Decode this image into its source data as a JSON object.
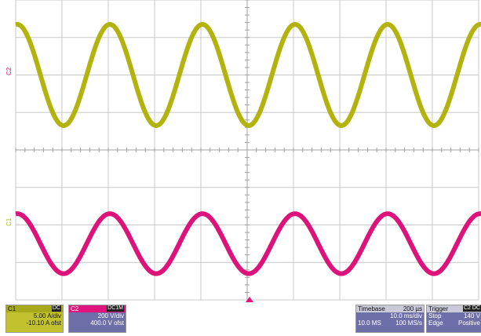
{
  "colors": {
    "ch1": "#b3b30f",
    "ch2": "#dc137a",
    "grid": "#c8c8c8",
    "axis": "#a0a0a0",
    "trigger_marker": "#e0157e",
    "background": "#ffffff"
  },
  "waveform_1": {
    "label": "C1",
    "cycles": 5.0,
    "amplitude_div": 1.35,
    "center_div": 2.0
  },
  "waveform_2": {
    "label": "C2",
    "cycles": 5.0,
    "amplitude_div": 0.8,
    "center_div": 6.5
  },
  "ch1": {
    "label": "C1",
    "coupling": "DC",
    "scale": "5.00 A/div",
    "offset": "-10.10 A ofst"
  },
  "ch2": {
    "label": "C2",
    "coupling": "DC1M",
    "scale": "200 V/div",
    "offset": "400.0 V ofst"
  },
  "timebase": {
    "title": "Timebase",
    "delay": "200 µs",
    "scale": "10.0 ms/div",
    "memory": "10.0 MS",
    "rate": "100 MS/s"
  },
  "trigger": {
    "title": "Trigger",
    "badge": "C2 DC",
    "mode": "Stop",
    "level": "140 V",
    "type": "Edge",
    "slope": "Positive"
  }
}
